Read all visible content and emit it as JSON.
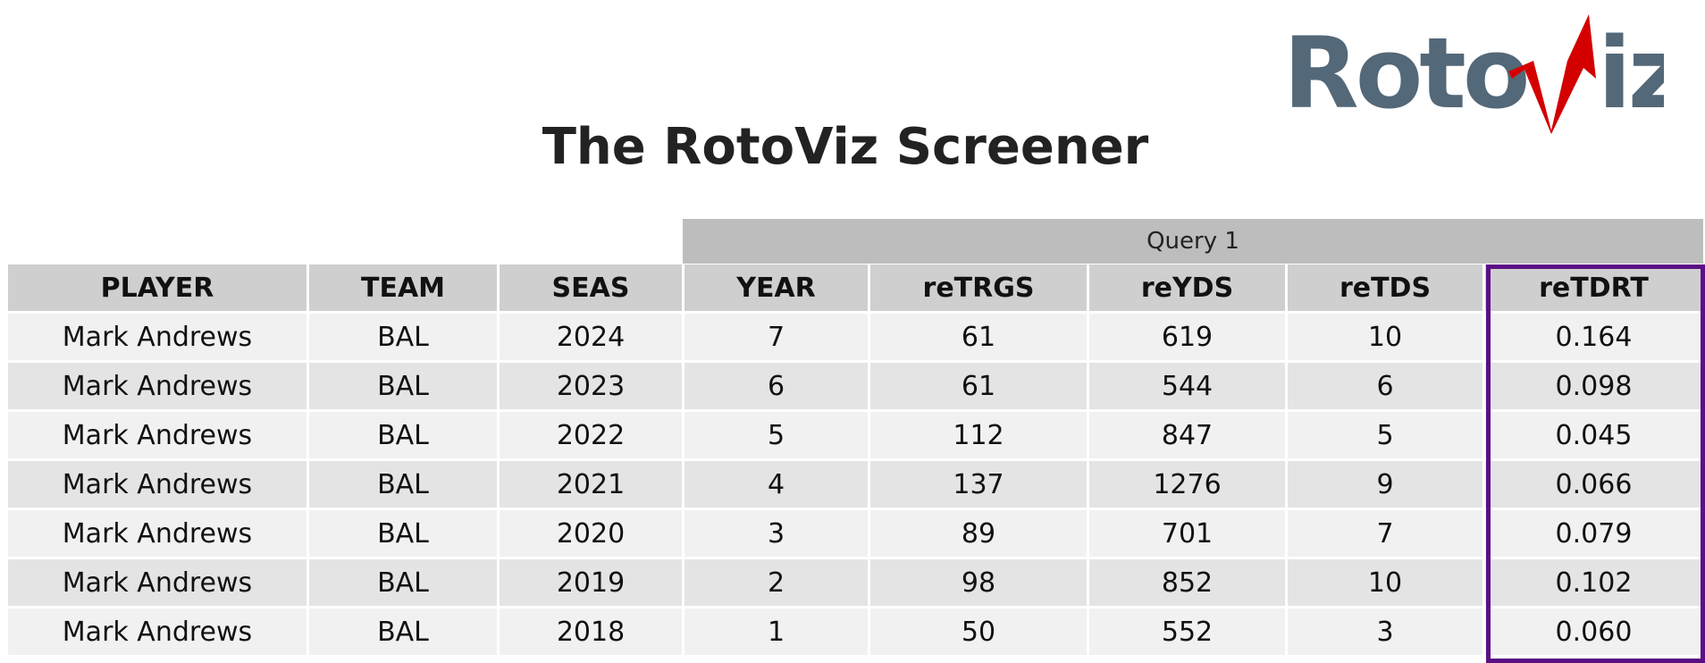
{
  "logo": {
    "text": "RotoViz",
    "colors": {
      "gray": "#536878",
      "red": "#d40000"
    }
  },
  "title": "The RotoViz Screener",
  "query_label": "Query 1",
  "highlight_color": "#5b0f84",
  "table": {
    "headers": [
      "PLAYER",
      "TEAM",
      "SEAS",
      "YEAR",
      "reTRGS",
      "reYDS",
      "reTDS",
      "reTDRT"
    ],
    "rows": [
      [
        "Mark Andrews",
        "BAL",
        "2024",
        "7",
        "61",
        "619",
        "10",
        "0.164"
      ],
      [
        "Mark Andrews",
        "BAL",
        "2023",
        "6",
        "61",
        "544",
        "6",
        "0.098"
      ],
      [
        "Mark Andrews",
        "BAL",
        "2022",
        "5",
        "112",
        "847",
        "5",
        "0.045"
      ],
      [
        "Mark Andrews",
        "BAL",
        "2021",
        "4",
        "137",
        "1276",
        "9",
        "0.066"
      ],
      [
        "Mark Andrews",
        "BAL",
        "2020",
        "3",
        "89",
        "701",
        "7",
        "0.079"
      ],
      [
        "Mark Andrews",
        "BAL",
        "2019",
        "2",
        "98",
        "852",
        "10",
        "0.102"
      ],
      [
        "Mark Andrews",
        "BAL",
        "2018",
        "1",
        "50",
        "552",
        "3",
        "0.060"
      ]
    ]
  }
}
